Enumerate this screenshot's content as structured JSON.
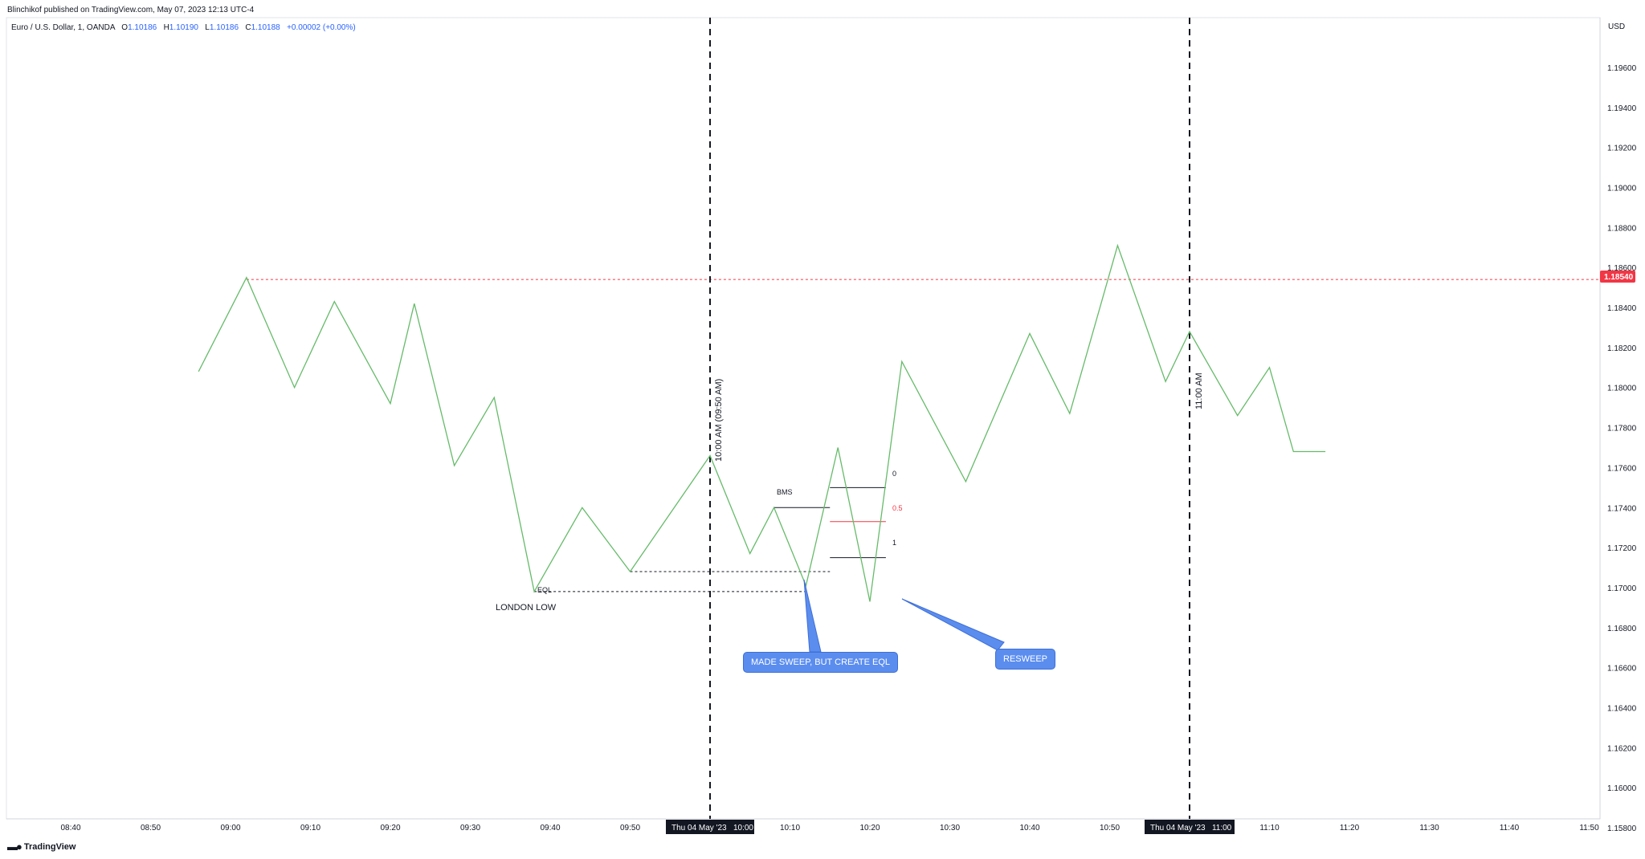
{
  "header": {
    "published_text": "Blinchikof published on TradingView.com, May 07, 2023 12:13 UTC-4"
  },
  "legend": {
    "symbol_text": "Euro / U.S. Dollar, 1, OANDA",
    "o_label": "O",
    "o_value": "1.10186",
    "h_label": "H",
    "h_value": "1.10190",
    "l_label": "L",
    "l_value": "1.10186",
    "c_label": "C",
    "c_value": "1.10188",
    "change": "+0.00002 (+0.00%)"
  },
  "price_axis": {
    "currency": "USD",
    "current_price_label": "1.18540",
    "current_price_color": "#f23645"
  },
  "time_axis": {
    "highlight_labels": [
      "Thu 04 May '23   10:00",
      "Thu 04 May '23   11:00"
    ]
  },
  "annotations": {
    "vline_1_label": "10:00 AM (09:50 AM)",
    "vline_2_label": "11:00 AM",
    "bms": "BMS",
    "eql": "EQL",
    "london_low": "LONDON LOW",
    "fib_0": "0",
    "fib_05": "0.5",
    "fib_1": "1",
    "callout_1": "MADE SWEEP, BUT CREATE EQL",
    "callout_2": "RESWEEP",
    "callout_color": "#5b8def"
  },
  "footer": {
    "brand": "TradingView"
  },
  "chart_data": {
    "type": "line",
    "symbol": "Euro / U.S. Dollar, 1, OANDA",
    "line_color": "#66bb6a",
    "x_ticks": [
      "08:40",
      "08:50",
      "09:00",
      "09:10",
      "09:20",
      "09:30",
      "09:40",
      "09:50",
      "10:00",
      "10:10",
      "10:20",
      "10:30",
      "10:40",
      "10:50",
      "11:00",
      "11:10",
      "11:20",
      "11:30",
      "11:40",
      "11:50"
    ],
    "y_ticks": [
      "1.19600",
      "1.19400",
      "1.19200",
      "1.19000",
      "1.18800",
      "1.18600",
      "1.18400",
      "1.18200",
      "1.18000",
      "1.17800",
      "1.17600",
      "1.17400",
      "1.17200",
      "1.17000",
      "1.16800",
      "1.16600",
      "1.16400",
      "1.16200",
      "1.16000",
      "1.15800"
    ],
    "ylim": [
      1.158,
      1.198
    ],
    "xlim_minutes": [
      "08:31",
      "11:50"
    ],
    "x": [
      "08:56",
      "09:02",
      "09:08",
      "09:13",
      "09:20",
      "09:23",
      "09:28",
      "09:33",
      "09:38",
      "09:44",
      "09:50",
      "10:00",
      "10:05",
      "10:08",
      "10:12",
      "10:16",
      "10:20",
      "10:24",
      "10:32",
      "10:40",
      "10:45",
      "10:51",
      "10:57",
      "11:00",
      "11:06",
      "11:10",
      "11:13",
      "11:17"
    ],
    "y": [
      1.1808,
      1.1855,
      1.18,
      1.1843,
      1.1792,
      1.1842,
      1.1761,
      1.1795,
      1.1698,
      1.174,
      1.1708,
      1.1766,
      1.1717,
      1.174,
      1.1701,
      1.177,
      1.1693,
      1.1813,
      1.1753,
      1.1827,
      1.1787,
      1.1871,
      1.1803,
      1.1828,
      1.1786,
      1.181,
      1.1768,
      1.1768
    ],
    "horizontal_levels": [
      {
        "price": 1.1854,
        "style": "dotted",
        "color": "#f23645"
      },
      {
        "price": 1.1698,
        "style": "dotted",
        "color": "#131722",
        "label": "EQL"
      },
      {
        "price": 1.1708,
        "style": "dotted",
        "color": "#131722"
      },
      {
        "price": 1.174,
        "style": "solid",
        "color": "#131722",
        "label": "BMS"
      }
    ],
    "fib_levels": [
      {
        "label": "0",
        "price": 1.175,
        "color": "#131722"
      },
      {
        "label": "0.5",
        "price": 1.1733,
        "color": "#f23645"
      },
      {
        "label": "1",
        "price": 1.1715,
        "color": "#131722"
      }
    ],
    "vertical_lines": [
      {
        "time": "10:00",
        "style": "dashed",
        "label": "10:00 AM (09:50 AM)"
      },
      {
        "time": "11:00",
        "style": "dashed",
        "label": "11:00 AM"
      }
    ]
  }
}
